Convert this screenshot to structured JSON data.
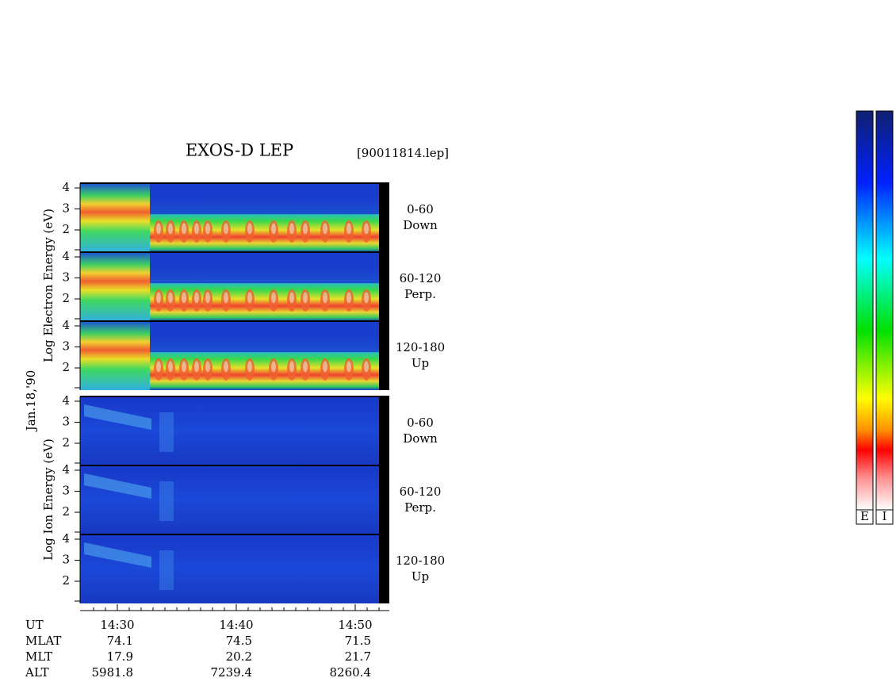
{
  "header": {
    "title": "EXOS-D LEP",
    "file": "[90011814.lep]"
  },
  "date": "Jan.18,'90",
  "electron": {
    "axis_label": "Log  Electron  Energy  (eV)",
    "panels": [
      {
        "ticks": [
          "4",
          "3",
          "2"
        ],
        "channel": "0-60",
        "direction": "Down"
      },
      {
        "ticks": [
          "4",
          "3",
          "2"
        ],
        "channel": "60-120",
        "direction": "Perp."
      },
      {
        "ticks": [
          "4",
          "3",
          "2"
        ],
        "channel": "120-180",
        "direction": "Up"
      }
    ]
  },
  "ion": {
    "axis_label": "Log  Ion  Energy  (eV)",
    "panels": [
      {
        "ticks": [
          "4",
          "3",
          "2"
        ],
        "channel": "0-60",
        "direction": "Down"
      },
      {
        "ticks": [
          "4",
          "3",
          "2"
        ],
        "channel": "60-120",
        "direction": "Perp."
      },
      {
        "ticks": [
          "4",
          "3",
          "2"
        ],
        "channel": "120-180",
        "direction": "Up"
      }
    ]
  },
  "footer": {
    "rows": [
      {
        "label": "UT",
        "values": [
          "14:30",
          "14:40",
          "14:50"
        ]
      },
      {
        "label": "MLAT",
        "values": [
          "74.1",
          "74.5",
          "71.5"
        ]
      },
      {
        "label": "MLT",
        "values": [
          "17.9",
          "20.2",
          "21.7"
        ]
      },
      {
        "label": "ALT",
        "values": [
          "5981.8",
          "7239.4",
          "8260.4"
        ]
      }
    ]
  },
  "colorbars": [
    "E",
    "I"
  ]
}
